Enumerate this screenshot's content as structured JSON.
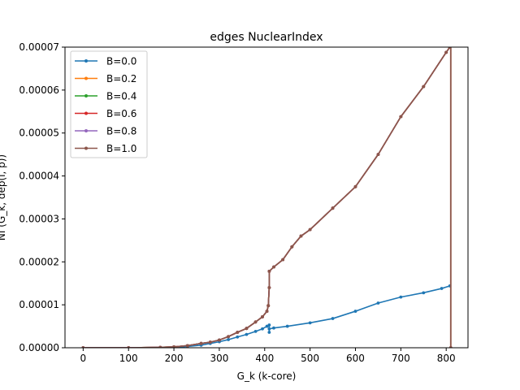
{
  "chart_data": {
    "type": "line",
    "title": "edges NuclearIndex",
    "xlabel": "G_k (k-core)",
    "ylabel": "NI (G_k, dep(i, p))",
    "xlim": [
      -40,
      848
    ],
    "ylim": [
      0,
      7e-05
    ],
    "xticks": [
      0,
      100,
      200,
      300,
      400,
      500,
      600,
      700,
      800
    ],
    "yticks": [
      0,
      1e-05,
      2e-05,
      3e-05,
      4e-05,
      5e-05,
      6e-05,
      7e-05
    ],
    "xtick_labels": [
      "0",
      "100",
      "200",
      "300",
      "400",
      "500",
      "600",
      "700",
      "800"
    ],
    "ytick_labels": [
      "0.00000",
      "0.00001",
      "0.00002",
      "0.00003",
      "0.00004",
      "0.00005",
      "0.00006",
      "0.00007"
    ],
    "grid": false,
    "legend_position": "top-left",
    "series": [
      {
        "name": "B=0.0",
        "color": "#1f77b4",
        "points": [
          [
            0,
            0
          ],
          [
            100,
            0
          ],
          [
            170,
            5e-08
          ],
          [
            200,
            1e-07
          ],
          [
            230,
            3e-07
          ],
          [
            260,
            6e-07
          ],
          [
            280,
            1e-06
          ],
          [
            300,
            1.4e-06
          ],
          [
            320,
            1.9e-06
          ],
          [
            340,
            2.5e-06
          ],
          [
            360,
            3.1e-06
          ],
          [
            380,
            3.8e-06
          ],
          [
            395,
            4.4e-06
          ],
          [
            405,
            5e-06
          ],
          [
            410,
            5.3e-06
          ],
          [
            410,
            3.6e-06
          ],
          [
            410,
            4.4e-06
          ],
          [
            420,
            4.6e-06
          ],
          [
            450,
            5e-06
          ],
          [
            500,
            5.8e-06
          ],
          [
            550,
            6.8e-06
          ],
          [
            600,
            8.5e-06
          ],
          [
            650,
            1.04e-05
          ],
          [
            700,
            1.18e-05
          ],
          [
            750,
            1.28e-05
          ],
          [
            790,
            1.38e-05
          ],
          [
            808,
            1.44e-05
          ]
        ]
      },
      {
        "name": "B=0.2",
        "color": "#ff7f0e",
        "points": [
          [
            0,
            0
          ],
          [
            100,
            0
          ],
          [
            170,
            1e-07
          ],
          [
            200,
            2e-07
          ],
          [
            230,
            5e-07
          ],
          [
            260,
            1e-06
          ],
          [
            280,
            1.3e-06
          ],
          [
            300,
            1.8e-06
          ],
          [
            320,
            2.6e-06
          ],
          [
            340,
            3.6e-06
          ],
          [
            360,
            4.5e-06
          ],
          [
            380,
            6e-06
          ],
          [
            395,
            7.2e-06
          ],
          [
            405,
            8.5e-06
          ],
          [
            408,
            9.8e-06
          ],
          [
            410,
            1.4e-05
          ],
          [
            410,
            1.78e-05
          ],
          [
            420,
            1.88e-05
          ],
          [
            440,
            2.05e-05
          ],
          [
            460,
            2.35e-05
          ],
          [
            480,
            2.6e-05
          ],
          [
            500,
            2.75e-05
          ],
          [
            550,
            3.25e-05
          ],
          [
            600,
            3.75e-05
          ],
          [
            650,
            4.5e-05
          ],
          [
            700,
            5.38e-05
          ],
          [
            750,
            6.08e-05
          ],
          [
            800,
            6.88e-05
          ],
          [
            808,
            7e-05
          ],
          [
            810,
            7.05e-05
          ],
          [
            810,
            0
          ]
        ]
      },
      {
        "name": "B=0.4",
        "color": "#2ca02c",
        "points": [
          [
            0,
            0
          ],
          [
            100,
            0
          ],
          [
            170,
            1e-07
          ],
          [
            200,
            2e-07
          ],
          [
            230,
            5e-07
          ],
          [
            260,
            1e-06
          ],
          [
            280,
            1.3e-06
          ],
          [
            300,
            1.8e-06
          ],
          [
            320,
            2.6e-06
          ],
          [
            340,
            3.6e-06
          ],
          [
            360,
            4.5e-06
          ],
          [
            380,
            6e-06
          ],
          [
            395,
            7.2e-06
          ],
          [
            405,
            8.5e-06
          ],
          [
            408,
            9.8e-06
          ],
          [
            410,
            1.4e-05
          ],
          [
            410,
            1.78e-05
          ],
          [
            420,
            1.88e-05
          ],
          [
            440,
            2.05e-05
          ],
          [
            460,
            2.35e-05
          ],
          [
            480,
            2.6e-05
          ],
          [
            500,
            2.75e-05
          ],
          [
            550,
            3.25e-05
          ],
          [
            600,
            3.75e-05
          ],
          [
            650,
            4.5e-05
          ],
          [
            700,
            5.38e-05
          ],
          [
            750,
            6.08e-05
          ],
          [
            800,
            6.88e-05
          ],
          [
            808,
            7e-05
          ],
          [
            810,
            7.05e-05
          ],
          [
            810,
            0
          ]
        ]
      },
      {
        "name": "B=0.6",
        "color": "#d62728",
        "points": [
          [
            0,
            0
          ],
          [
            100,
            0
          ],
          [
            170,
            1e-07
          ],
          [
            200,
            2e-07
          ],
          [
            230,
            5e-07
          ],
          [
            260,
            1e-06
          ],
          [
            280,
            1.3e-06
          ],
          [
            300,
            1.8e-06
          ],
          [
            320,
            2.6e-06
          ],
          [
            340,
            3.6e-06
          ],
          [
            360,
            4.5e-06
          ],
          [
            380,
            6e-06
          ],
          [
            395,
            7.2e-06
          ],
          [
            405,
            8.5e-06
          ],
          [
            408,
            9.8e-06
          ],
          [
            410,
            1.4e-05
          ],
          [
            410,
            1.78e-05
          ],
          [
            420,
            1.88e-05
          ],
          [
            440,
            2.05e-05
          ],
          [
            460,
            2.35e-05
          ],
          [
            480,
            2.6e-05
          ],
          [
            500,
            2.75e-05
          ],
          [
            550,
            3.25e-05
          ],
          [
            600,
            3.75e-05
          ],
          [
            650,
            4.5e-05
          ],
          [
            700,
            5.38e-05
          ],
          [
            750,
            6.08e-05
          ],
          [
            800,
            6.88e-05
          ],
          [
            808,
            7e-05
          ],
          [
            810,
            7.05e-05
          ],
          [
            810,
            0
          ]
        ]
      },
      {
        "name": "B=0.8",
        "color": "#9467bd",
        "points": [
          [
            0,
            0
          ],
          [
            100,
            0
          ],
          [
            170,
            1e-07
          ],
          [
            200,
            2e-07
          ],
          [
            230,
            5e-07
          ],
          [
            260,
            1e-06
          ],
          [
            280,
            1.3e-06
          ],
          [
            300,
            1.8e-06
          ],
          [
            320,
            2.6e-06
          ],
          [
            340,
            3.6e-06
          ],
          [
            360,
            4.5e-06
          ],
          [
            380,
            6e-06
          ],
          [
            395,
            7.2e-06
          ],
          [
            405,
            8.5e-06
          ],
          [
            408,
            9.8e-06
          ],
          [
            410,
            1.4e-05
          ],
          [
            410,
            1.78e-05
          ],
          [
            420,
            1.88e-05
          ],
          [
            440,
            2.05e-05
          ],
          [
            460,
            2.35e-05
          ],
          [
            480,
            2.6e-05
          ],
          [
            500,
            2.75e-05
          ],
          [
            550,
            3.25e-05
          ],
          [
            600,
            3.75e-05
          ],
          [
            650,
            4.5e-05
          ],
          [
            700,
            5.38e-05
          ],
          [
            750,
            6.08e-05
          ],
          [
            800,
            6.88e-05
          ],
          [
            808,
            7e-05
          ],
          [
            810,
            7.05e-05
          ],
          [
            810,
            0
          ]
        ]
      },
      {
        "name": "B=1.0",
        "color": "#8c564b",
        "points": [
          [
            0,
            0
          ],
          [
            100,
            0
          ],
          [
            170,
            1e-07
          ],
          [
            200,
            2e-07
          ],
          [
            230,
            5e-07
          ],
          [
            260,
            1e-06
          ],
          [
            280,
            1.3e-06
          ],
          [
            300,
            1.8e-06
          ],
          [
            320,
            2.6e-06
          ],
          [
            340,
            3.6e-06
          ],
          [
            360,
            4.5e-06
          ],
          [
            380,
            6e-06
          ],
          [
            395,
            7.2e-06
          ],
          [
            405,
            8.5e-06
          ],
          [
            408,
            9.8e-06
          ],
          [
            410,
            1.4e-05
          ],
          [
            410,
            1.78e-05
          ],
          [
            420,
            1.88e-05
          ],
          [
            440,
            2.05e-05
          ],
          [
            460,
            2.35e-05
          ],
          [
            480,
            2.6e-05
          ],
          [
            500,
            2.75e-05
          ],
          [
            550,
            3.25e-05
          ],
          [
            600,
            3.75e-05
          ],
          [
            650,
            4.5e-05
          ],
          [
            700,
            5.38e-05
          ],
          [
            750,
            6.08e-05
          ],
          [
            800,
            6.88e-05
          ],
          [
            808,
            7e-05
          ],
          [
            810,
            7.05e-05
          ],
          [
            810,
            0
          ]
        ]
      }
    ]
  }
}
